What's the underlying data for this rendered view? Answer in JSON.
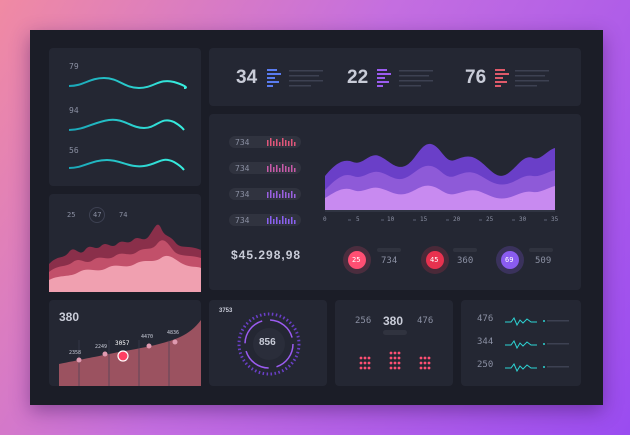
{
  "waves_panel": {
    "values": [
      "79",
      "94",
      "56"
    ],
    "color": "#2dd4d4"
  },
  "stats_bar": {
    "items": [
      {
        "value": "34",
        "color": "#5a7cf0"
      },
      {
        "value": "22",
        "color": "#9b5cf0"
      },
      {
        "value": "76",
        "color": "#e05a6a"
      }
    ]
  },
  "main_chart": {
    "rows": [
      "734",
      "734",
      "734",
      "734"
    ],
    "x_ticks": [
      "0",
      "5",
      "10",
      "15",
      "20",
      "25",
      "30",
      "35"
    ],
    "amount": "$45.298,98",
    "rings": [
      {
        "value": "25",
        "label": "734",
        "color": "#ff4f73"
      },
      {
        "value": "45",
        "label": "360",
        "color": "#e8324f"
      },
      {
        "value": "69",
        "label": "509",
        "color": "#8a5cf0"
      }
    ]
  },
  "mountain_panel": {
    "values": [
      "25",
      "47",
      "74"
    ]
  },
  "area_panel": {
    "title": "380",
    "points": [
      {
        "label": "2358"
      },
      {
        "label": "2249"
      },
      {
        "label": "3057",
        "active": true
      },
      {
        "label": "4470"
      },
      {
        "label": "4836"
      }
    ]
  },
  "gauge_panel": {
    "top_value": "3753",
    "center_value": "856"
  },
  "dots_panel": {
    "values": [
      "256",
      "380",
      "476"
    ]
  },
  "lines_panel": {
    "values": [
      "476",
      "344",
      "250"
    ]
  }
}
